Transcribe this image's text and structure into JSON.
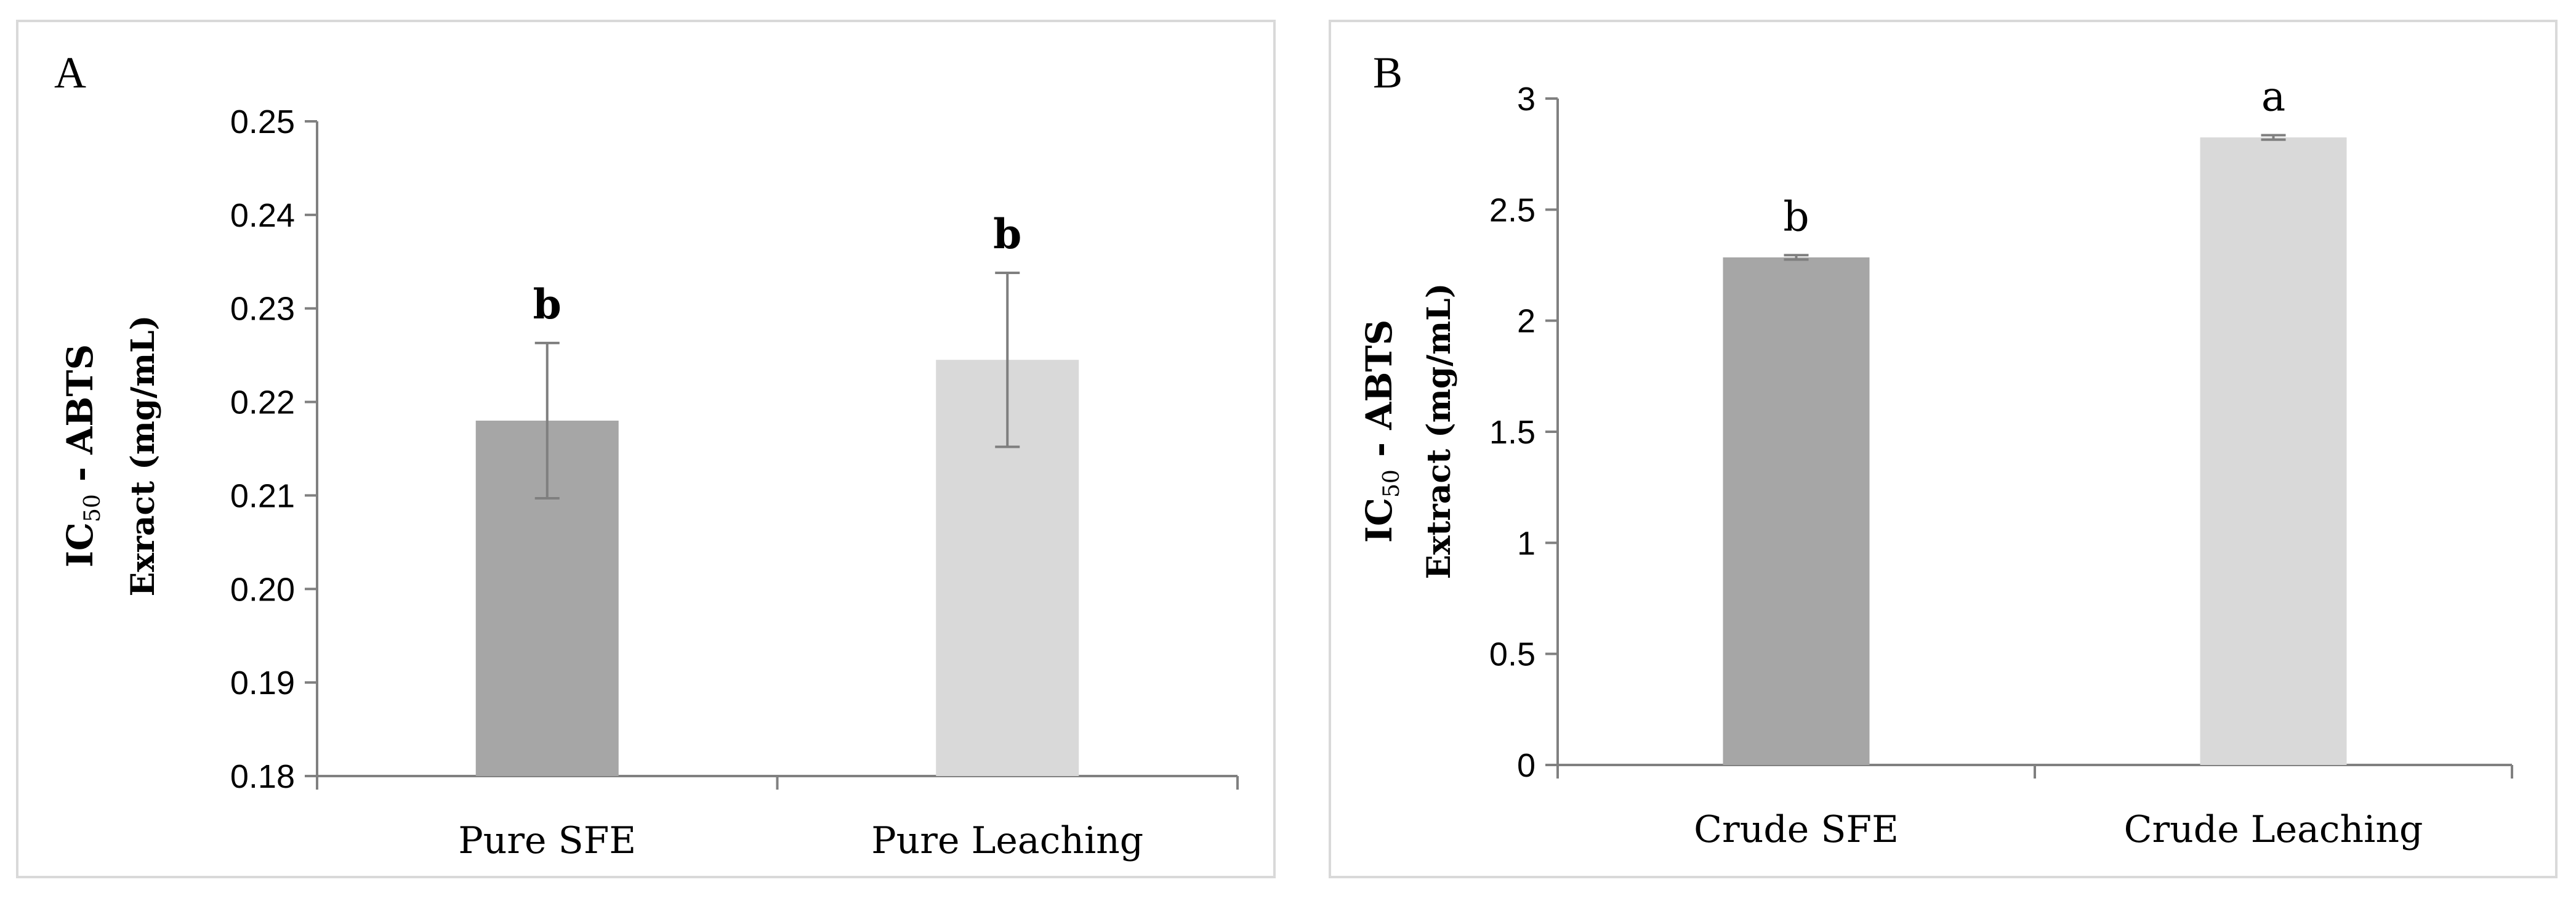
{
  "chart_data": [
    {
      "type": "bar",
      "panel_label": "A",
      "ylabel_main": "IC",
      "ylabel_sub": "50",
      "ylabel_rest": " - ABTS",
      "ylabel_line2": "Exract (mg/mL)",
      "categories": [
        "Pure SFE",
        "Pure Leaching"
      ],
      "values": [
        0.218,
        0.2245
      ],
      "errors": [
        0.0083,
        0.0093
      ],
      "sig_letters": [
        "b",
        "b"
      ],
      "bar_colors": [
        "#a6a6a6",
        "#d9d9d9"
      ],
      "ylim": [
        0.18,
        0.25
      ],
      "yticks": [
        0.18,
        0.19,
        0.2,
        0.21,
        0.22,
        0.23,
        0.24,
        0.25
      ],
      "ytick_labels": [
        "0.18",
        "0.19",
        "0.20",
        "0.21",
        "0.22",
        "0.23",
        "0.24",
        "0.25"
      ]
    },
    {
      "type": "bar",
      "panel_label": "B",
      "ylabel_main": "IC",
      "ylabel_sub": "50",
      "ylabel_rest": " - ABTS",
      "ylabel_line2": "Extract (mg/mL)",
      "categories": [
        "Crude SFE",
        "Crude Leaching"
      ],
      "values": [
        2.285,
        2.825
      ],
      "errors": [
        0.01,
        0.01
      ],
      "sig_letters": [
        "b",
        "a"
      ],
      "bar_colors": [
        "#a6a6a6",
        "#d9d9d9"
      ],
      "ylim": [
        0,
        3
      ],
      "yticks": [
        0,
        0.5,
        1,
        1.5,
        2,
        2.5,
        3
      ],
      "ytick_labels": [
        "0",
        "0.5",
        "1",
        "1.5",
        "2",
        "2.5",
        "3"
      ]
    }
  ]
}
